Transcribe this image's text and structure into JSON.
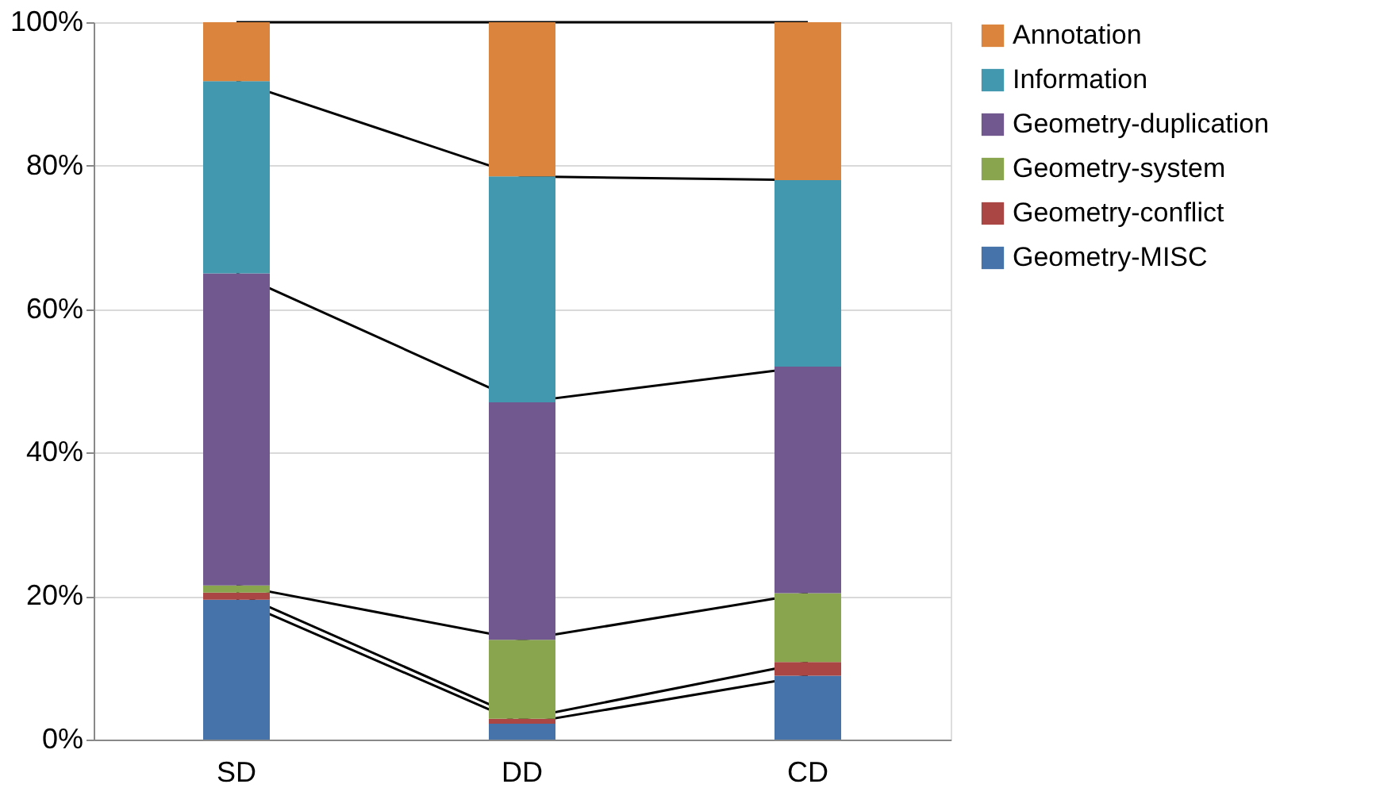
{
  "chart_data": {
    "type": "bar",
    "stacked": true,
    "categories": [
      "SD",
      "DD",
      "CD"
    ],
    "series": [
      {
        "name": "Geometry-MISC",
        "color": "#4674aa",
        "values": [
          19.5,
          2.2,
          8.9
        ]
      },
      {
        "name": "Geometry-conflict",
        "color": "#aa4643",
        "values": [
          1,
          0.7,
          1.9
        ]
      },
      {
        "name": "Geometry-system",
        "color": "#89a54e",
        "values": [
          1,
          11,
          9.6
        ]
      },
      {
        "name": "Geometry-duplication",
        "color": "#71588f",
        "values": [
          43.5,
          33.1,
          31.6
        ]
      },
      {
        "name": "Information",
        "color": "#4198af",
        "values": [
          26.8,
          31.5,
          26
        ]
      },
      {
        "name": "Annotation",
        "color": "#db843d",
        "values": [
          8.2,
          21.5,
          22
        ]
      }
    ],
    "ylim": [
      0,
      100
    ],
    "yticks": [
      {
        "value": 0,
        "label": "0%"
      },
      {
        "value": 20,
        "label": "20%"
      },
      {
        "value": 40,
        "label": "40%"
      },
      {
        "value": 60,
        "label": "60%"
      },
      {
        "value": 80,
        "label": "80%"
      },
      {
        "value": 100,
        "label": "100%"
      }
    ],
    "grid": "y",
    "legend": "right"
  }
}
